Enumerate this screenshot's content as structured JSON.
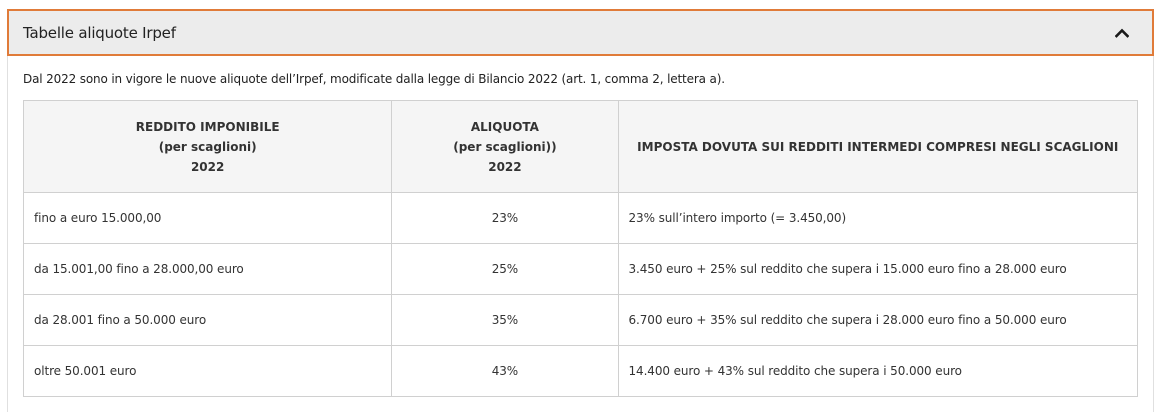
{
  "accordion": {
    "title": "Tabelle aliquote Irpef",
    "toggle_icon": "chevron-up-icon",
    "accent_color": "#e07b39"
  },
  "intro_text": "Dal 2022 sono in vigore le nuove aliquote dell’Irpef, modificate dalla legge di Bilancio 2022 (art. 1, comma 2, lettera a).",
  "table": {
    "headers": [
      {
        "line1": "REDDITO IMPONIBILE",
        "line2": "(per scaglioni)",
        "line3": "2022"
      },
      {
        "line1": "ALIQUOTA",
        "line2": "(per scaglioni))",
        "line3": "2022"
      },
      {
        "line1": "IMPOSTA DOVUTA SUI REDDITI INTERMEDI COMPRESI NEGLI SCAGLIONI",
        "line2": "",
        "line3": ""
      }
    ],
    "rows": [
      {
        "reddito": "fino a euro 15.000,00",
        "aliquota": "23%",
        "imposta": "23% sull’intero importo (= 3.450,00)"
      },
      {
        "reddito": "da 15.001,00 fino a 28.000,00 euro",
        "aliquota": "25%",
        "imposta": "3.450 euro + 25% sul reddito che supera i 15.000 euro fino a 28.000 euro"
      },
      {
        "reddito": "da 28.001 fino a 50.000 euro",
        "aliquota": "35%",
        "imposta": "6.700 euro + 35% sul reddito che supera i 28.000 euro fino a 50.000 euro"
      },
      {
        "reddito": "oltre 50.001 euro",
        "aliquota": "43%",
        "imposta": "14.400 euro + 43% sul reddito che supera i 50.000 euro"
      }
    ]
  }
}
